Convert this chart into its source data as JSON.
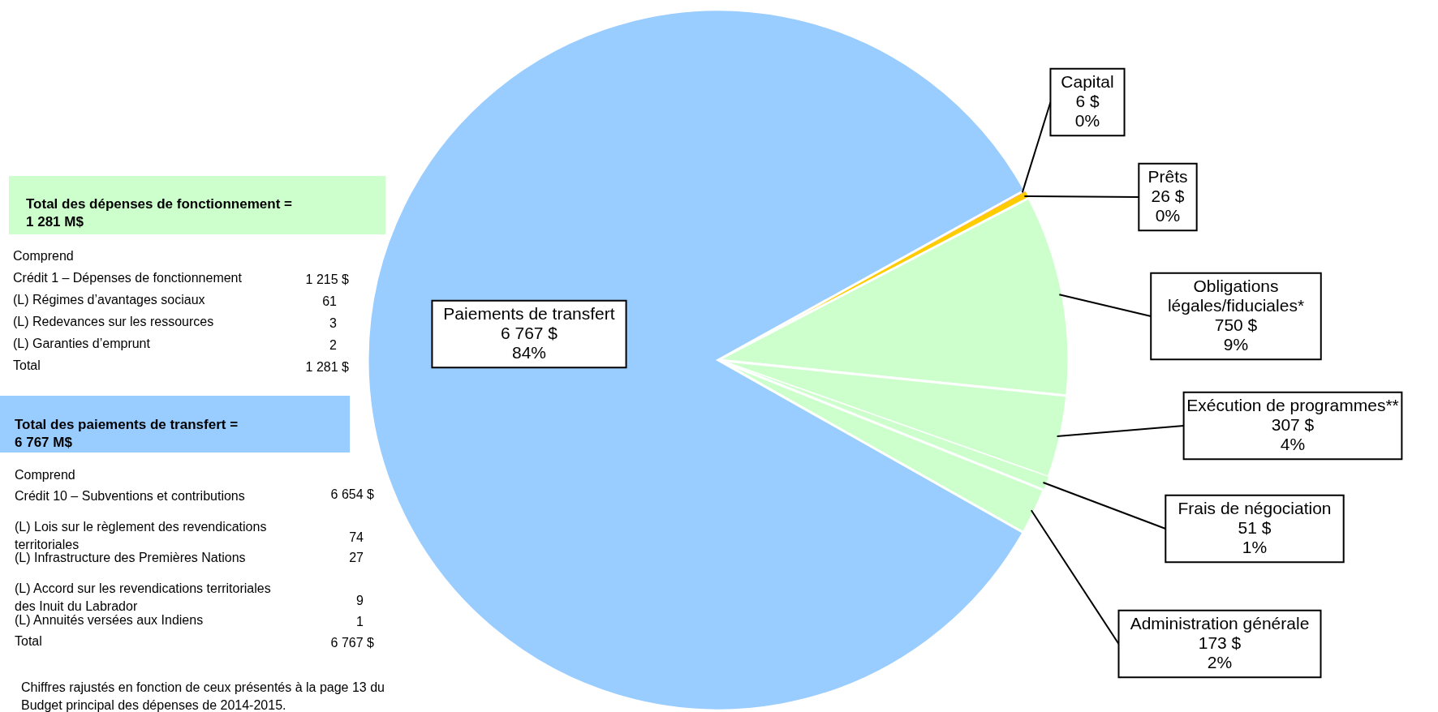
{
  "chart_data": {
    "type": "pie",
    "categories": [
      "Capital",
      "Prêts",
      "Obligations\nlégales/fiduciales*",
      "Exécution de programmes**",
      "Frais de négociation",
      "Administration générale",
      "Paiements de transfert"
    ],
    "values": [
      6,
      26,
      750,
      307,
      51,
      173,
      6767
    ],
    "colors": [
      "#ff3300",
      "#ffcc00",
      "#ccffcc",
      "#ccffcc",
      "#ccffcc",
      "#ccffcc",
      "#99ccff"
    ],
    "value_labels": [
      "6 $\n0%",
      "26 $\n0%",
      "750 $\n9%",
      "307 $\n4%",
      "51 $\n1%",
      "173 $\n2%",
      "6 767 $\n84%"
    ],
    "legend": false,
    "annotations": [
      "Total des dépenses de fonctionnement =\n1 281 M$",
      "Comprend",
      "Crédit 1 – Dépenses de fonctionnement",
      "1 215 $",
      "(L) Régimes d’avantages sociaux",
      "61",
      "(L) Redevances sur les ressources",
      "3",
      "(L) Garanties d’emprunt",
      "2",
      "Total",
      "1 281 $",
      "Total des paiements de transfert =\n6 767 M$",
      "Comprend",
      "Crédit 10  – Subventions et contributions",
      "6 654 $",
      "(L) Lois sur le règlement des revendications\nterritoriales",
      "74",
      "(L) Infrastructure des Premières Nations",
      "27",
      "(L) Accord sur les revendications territoriales\ndes Inuit du Labrador",
      "9",
      "(L) Annuités versées aux Indiens",
      "1",
      "Total",
      "6 767 $",
      "Chiffres rajustés en fonction de ceux présentés à la page 13 du\nBudget principal des dépenses de 2014-2015."
    ]
  }
}
